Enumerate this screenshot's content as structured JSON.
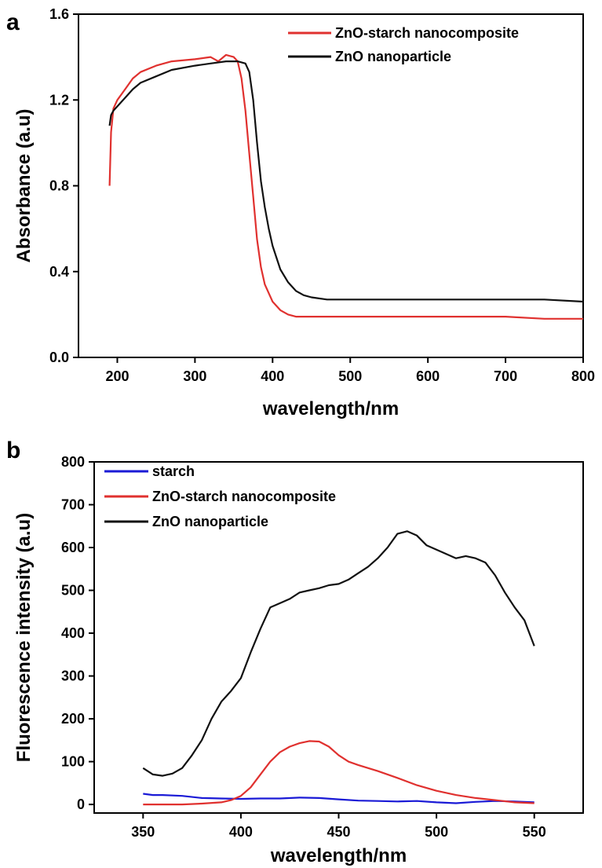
{
  "chart_data": [
    {
      "panel_label": "a",
      "type": "line",
      "xlabel": "wavelength/nm",
      "ylabel": "Absorbance (a.u)",
      "xlim": [
        150,
        800
      ],
      "ylim": [
        0.0,
        1.6
      ],
      "xticks": [
        200,
        300,
        400,
        500,
        600,
        700,
        800
      ],
      "xtick_labels": [
        "200",
        "300",
        "400",
        "500",
        "600",
        "700",
        "800"
      ],
      "yticks": [
        0.0,
        0.4,
        0.8,
        1.2,
        1.6
      ],
      "ytick_labels": [
        "0.0",
        "0.4",
        "0.8",
        "1.2",
        "1.6"
      ],
      "grid": false,
      "legend_position": "top-right",
      "series": [
        {
          "name": "ZnO-starch nanocomposite",
          "color": "#e0312f",
          "x": [
            190,
            192,
            195,
            200,
            210,
            220,
            230,
            250,
            270,
            300,
            320,
            330,
            340,
            350,
            355,
            360,
            365,
            370,
            375,
            380,
            385,
            390,
            400,
            410,
            420,
            430,
            450,
            500,
            600,
            700,
            750,
            800
          ],
          "y": [
            0.8,
            1.05,
            1.16,
            1.2,
            1.25,
            1.3,
            1.33,
            1.36,
            1.38,
            1.39,
            1.4,
            1.38,
            1.41,
            1.4,
            1.38,
            1.3,
            1.15,
            0.95,
            0.75,
            0.55,
            0.42,
            0.34,
            0.26,
            0.22,
            0.2,
            0.19,
            0.19,
            0.19,
            0.19,
            0.19,
            0.18,
            0.18
          ]
        },
        {
          "name": "ZnO nanoparticle",
          "color": "#111111",
          "x": [
            190,
            192,
            195,
            200,
            210,
            220,
            230,
            250,
            270,
            300,
            320,
            340,
            355,
            365,
            370,
            375,
            380,
            385,
            390,
            395,
            400,
            410,
            420,
            430,
            440,
            450,
            470,
            500,
            600,
            700,
            750,
            800
          ],
          "y": [
            1.08,
            1.13,
            1.15,
            1.17,
            1.21,
            1.25,
            1.28,
            1.31,
            1.34,
            1.36,
            1.37,
            1.38,
            1.38,
            1.37,
            1.33,
            1.2,
            1.0,
            0.82,
            0.7,
            0.6,
            0.52,
            0.41,
            0.35,
            0.31,
            0.29,
            0.28,
            0.27,
            0.27,
            0.27,
            0.27,
            0.27,
            0.26
          ]
        }
      ]
    },
    {
      "panel_label": "b",
      "type": "line",
      "xlabel": "wavelength/nm",
      "ylabel": "Fluorescence intensity (a.u)",
      "xlim": [
        325,
        575
      ],
      "ylim": [
        -20,
        800
      ],
      "xticks": [
        350,
        400,
        450,
        500,
        550
      ],
      "xtick_labels": [
        "350",
        "400",
        "450",
        "500",
        "550"
      ],
      "yticks": [
        0,
        100,
        200,
        300,
        400,
        500,
        600,
        700,
        800
      ],
      "ytick_labels": [
        "0",
        "100",
        "200",
        "300",
        "400",
        "500",
        "600",
        "700",
        "800"
      ],
      "grid": false,
      "legend_position": "top-left",
      "series": [
        {
          "name": "starch",
          "color": "#1a1ad6",
          "x": [
            350,
            355,
            360,
            370,
            380,
            390,
            400,
            410,
            420,
            430,
            440,
            450,
            460,
            470,
            480,
            490,
            500,
            510,
            520,
            530,
            540,
            550
          ],
          "y": [
            25,
            22,
            22,
            20,
            15,
            14,
            13,
            14,
            14,
            16,
            15,
            12,
            9,
            8,
            7,
            8,
            5,
            3,
            6,
            8,
            7,
            5
          ]
        },
        {
          "name": "ZnO-starch nanocomposite",
          "color": "#e0312f",
          "x": [
            350,
            360,
            370,
            380,
            390,
            395,
            400,
            405,
            410,
            415,
            420,
            425,
            430,
            435,
            440,
            445,
            450,
            455,
            460,
            470,
            480,
            490,
            500,
            510,
            520,
            530,
            540,
            550
          ],
          "y": [
            0,
            0,
            0,
            2,
            5,
            10,
            20,
            40,
            70,
            100,
            122,
            135,
            143,
            148,
            147,
            135,
            115,
            100,
            92,
            78,
            62,
            45,
            32,
            22,
            15,
            10,
            5,
            3
          ]
        },
        {
          "name": "ZnO nanoparticle",
          "color": "#111111",
          "x": [
            350,
            355,
            360,
            365,
            370,
            375,
            380,
            385,
            390,
            395,
            400,
            405,
            410,
            415,
            420,
            425,
            430,
            435,
            440,
            445,
            450,
            455,
            460,
            465,
            470,
            475,
            480,
            485,
            490,
            495,
            500,
            505,
            510,
            515,
            520,
            525,
            530,
            535,
            540,
            545,
            550
          ],
          "y": [
            85,
            70,
            67,
            72,
            85,
            115,
            150,
            200,
            240,
            265,
            295,
            355,
            410,
            460,
            470,
            480,
            495,
            500,
            505,
            512,
            515,
            525,
            540,
            555,
            575,
            600,
            632,
            638,
            628,
            605,
            595,
            585,
            575,
            580,
            575,
            565,
            535,
            495,
            460,
            430,
            370
          ]
        }
      ]
    }
  ]
}
